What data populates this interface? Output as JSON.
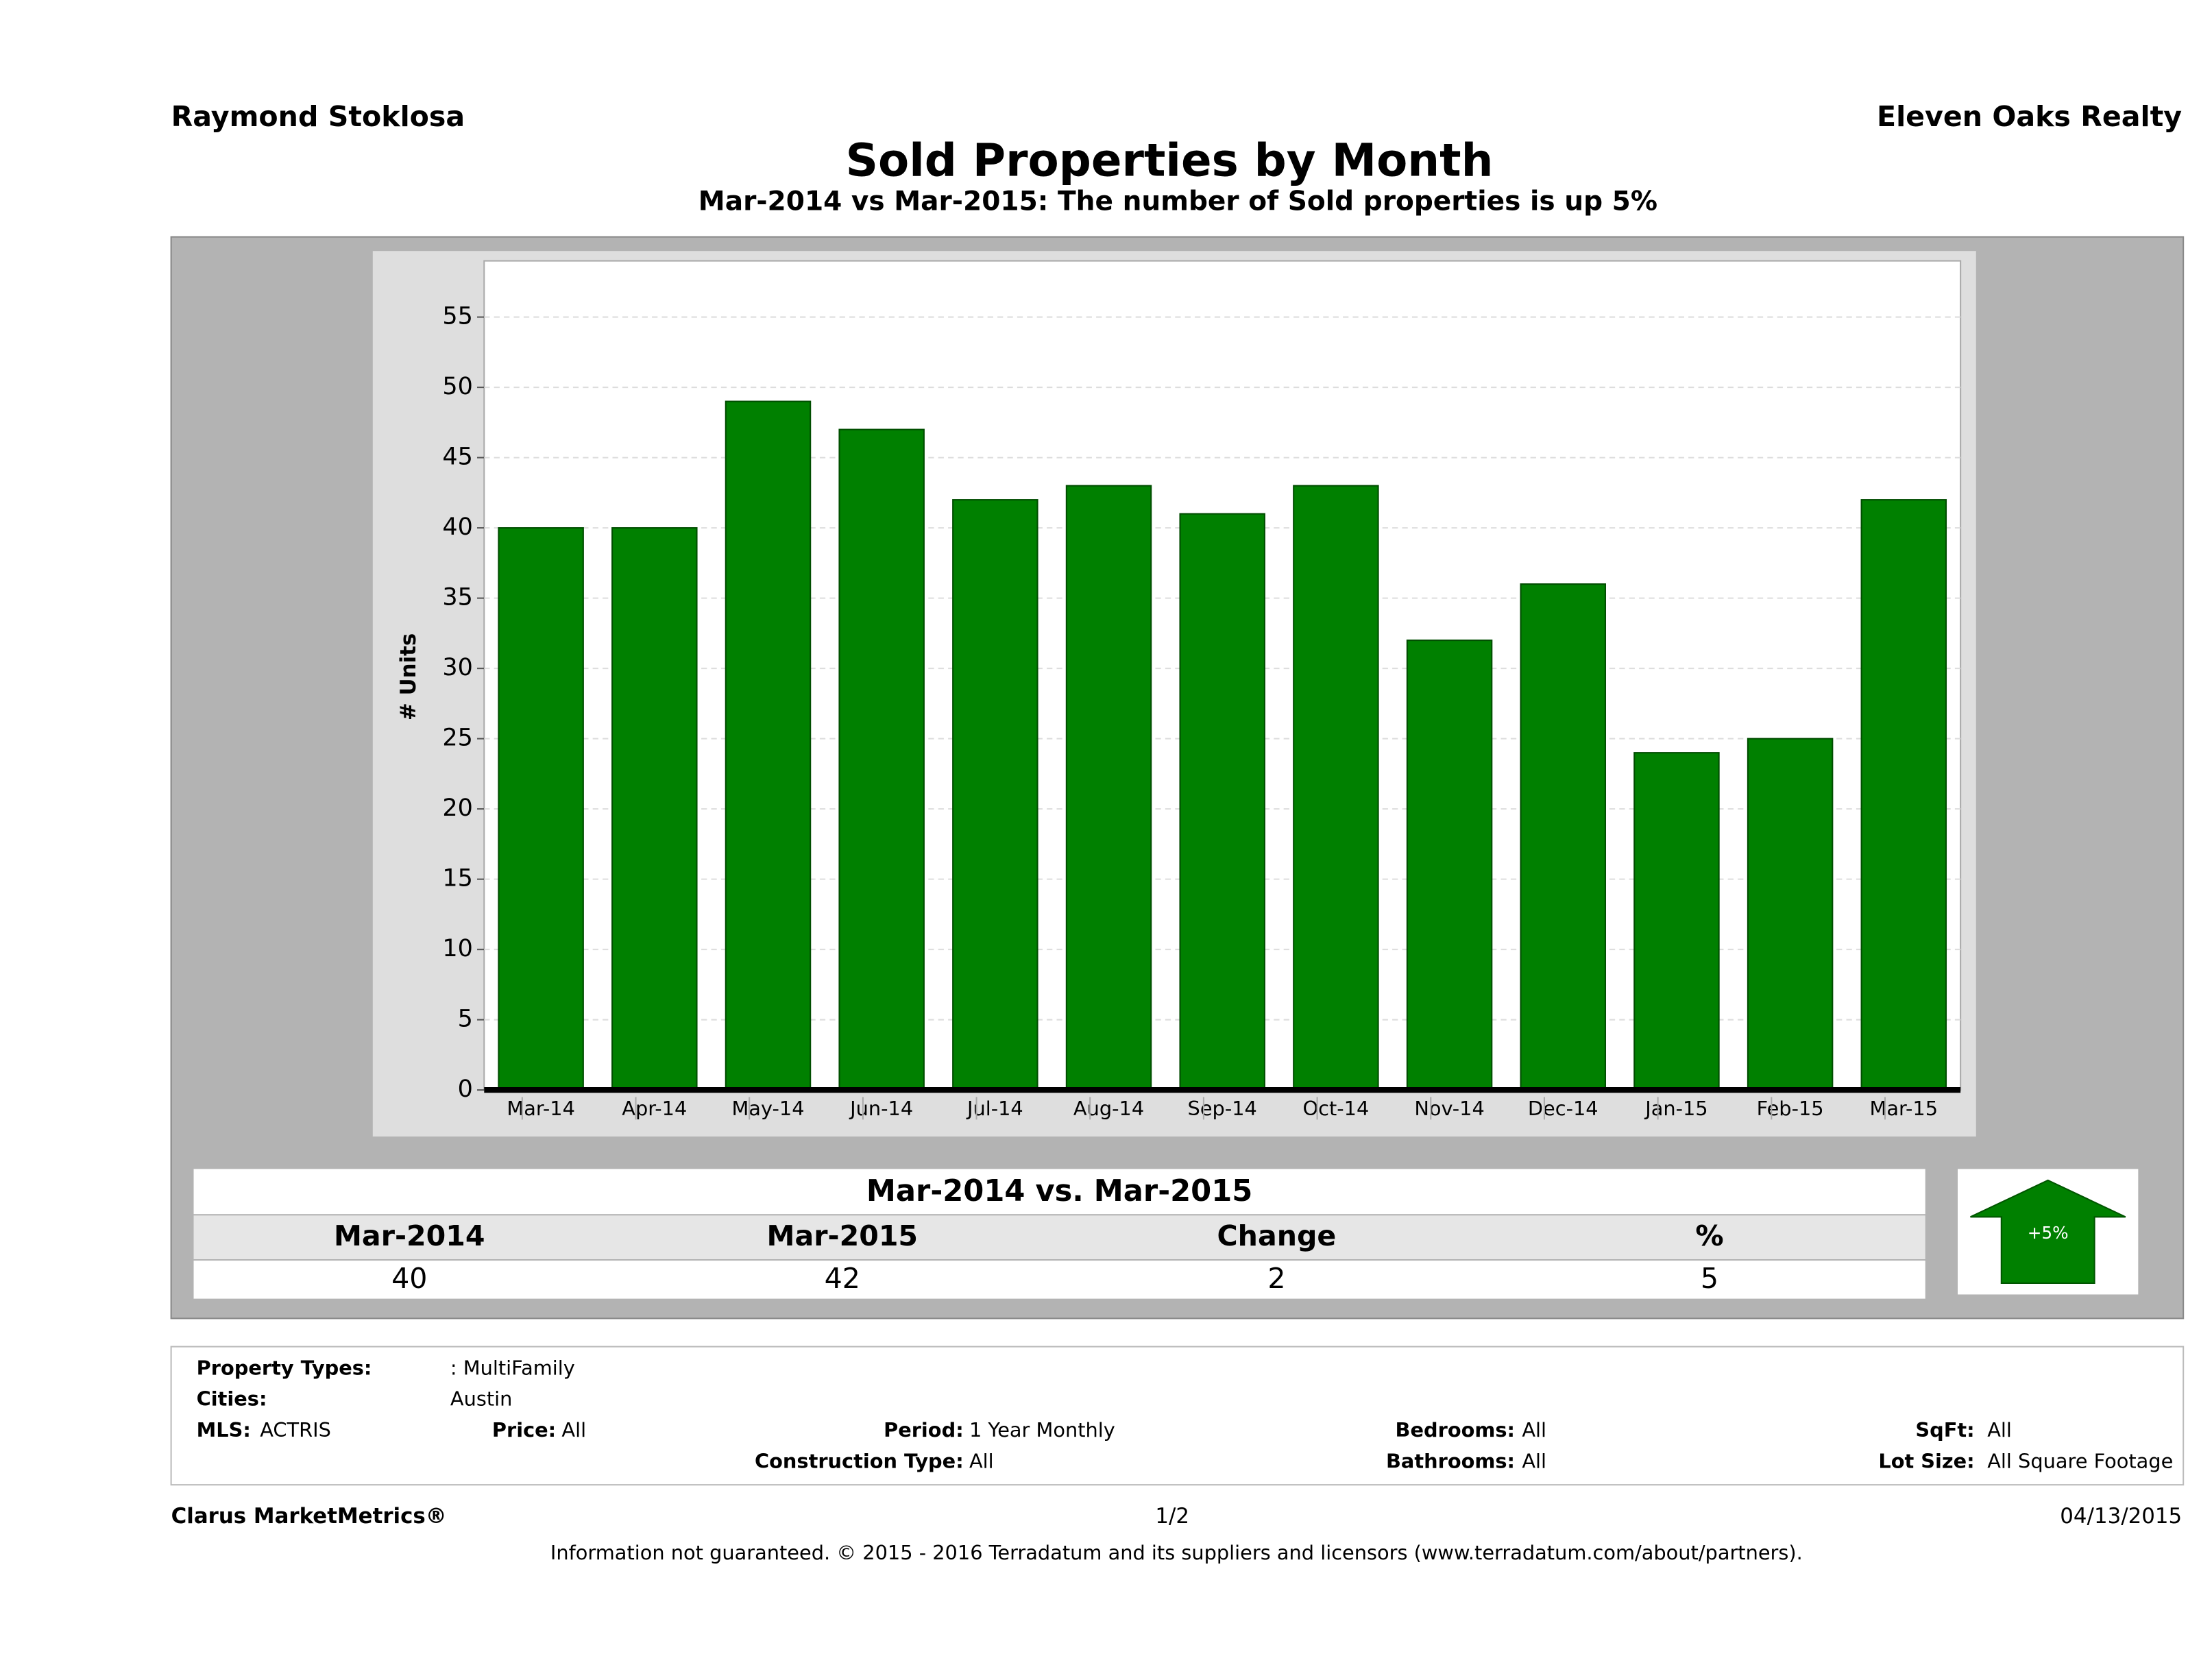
{
  "header": {
    "left": "Raymond Stoklosa",
    "right": "Eleven Oaks Realty"
  },
  "chart_data": {
    "type": "bar",
    "title": "Sold Properties by Month",
    "subtitle": "Mar-2014 vs Mar-2015: The number of Sold  properties is up 5%",
    "y_label": "# Units",
    "categories": [
      "Mar-14",
      "Apr-14",
      "May-14",
      "Jun-14",
      "Jul-14",
      "Aug-14",
      "Sep-14",
      "Oct-14",
      "Nov-14",
      "Dec-14",
      "Jan-15",
      "Feb-15",
      "Mar-15"
    ],
    "values": [
      40,
      40,
      49,
      47,
      42,
      43,
      41,
      43,
      32,
      36,
      24,
      25,
      42
    ],
    "color": "#008000",
    "ylim": [
      0,
      59
    ],
    "yticks": [
      0,
      5,
      10,
      15,
      20,
      25,
      30,
      35,
      40,
      45,
      50,
      55
    ],
    "grid": true
  },
  "summary": {
    "title": "Mar-2014 vs. Mar-2015",
    "headers": [
      "Mar-2014",
      "Mar-2015",
      "Change",
      "%"
    ],
    "values": [
      40,
      42,
      2,
      5
    ],
    "badge": "+5%"
  },
  "filters": {
    "property_types": [
      "Property Types:",
      ": MultiFamily"
    ],
    "cities": [
      "Cities:",
      "Austin"
    ],
    "mls": [
      "MLS:",
      "ACTRIS"
    ],
    "price": [
      "Price:",
      "All"
    ],
    "period": [
      "Period:",
      "1 Year Monthly"
    ],
    "construction": [
      "Construction Type:",
      "All"
    ],
    "bedrooms": [
      "Bedrooms:",
      "All"
    ],
    "bathrooms": [
      "Bathrooms:",
      "All"
    ],
    "sqft": [
      "SqFt:",
      "All"
    ],
    "lot_size": [
      "Lot Size:",
      "All Square Footage"
    ]
  },
  "footer": {
    "brand": "Clarus MarketMetrics®",
    "page": "1/2",
    "date": "04/13/2015",
    "disclaimer": "Information not guaranteed. © 2015 - 2016 Terradatum and its suppliers and licensors (www.terradatum.com/about/partners)."
  }
}
